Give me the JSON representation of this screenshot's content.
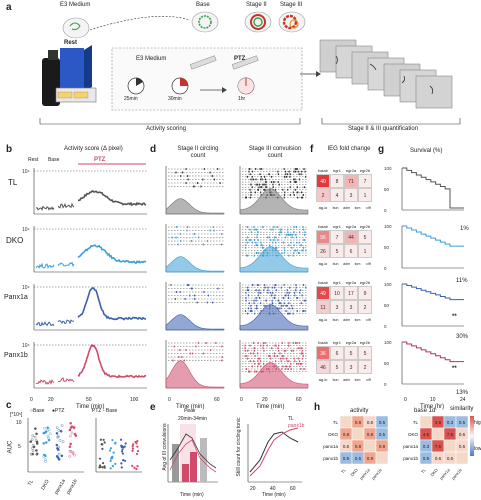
{
  "panel_a": {
    "letter": "a",
    "e3_medium_top": "E3 Medium",
    "rest": "Rest",
    "base": "Base",
    "stage2": "Stage II",
    "stage3": "Stage III",
    "e3_medium_mid": "E3 Medium",
    "ptz": "PTZ",
    "t25": "25min",
    "t30": "30min",
    "t1hr": "1hr",
    "activity_scoring": "Activity scoring",
    "quant": "Stage II & III quantification"
  },
  "panel_b": {
    "letter": "b",
    "title": "Activity score (Δ pixel)",
    "rest": "Rest",
    "base": "Base",
    "ptz": "PTZ",
    "rows": [
      "TL",
      "DKO",
      "Panx1a",
      "Panx1b"
    ],
    "ytick": "10⁴",
    "xticks": [
      "0",
      "20",
      "50",
      "100"
    ],
    "xlabel": "Time (min)",
    "colors": [
      "#555555",
      "#3a9fd6",
      "#3b5fb0",
      "#d04a6a"
    ]
  },
  "panel_c": {
    "letter": "c",
    "scale": "[*10⁵]",
    "legend1": "Base",
    "legend2": "PTZ",
    "legend3": "PTZ - Base",
    "ylabel": "AUC",
    "yticks": [
      "10",
      "5"
    ],
    "groups": [
      "TL",
      "DKO",
      "panx1a",
      "panx1b"
    ]
  },
  "panel_d": {
    "letter": "d",
    "title_left": "Stage II circling count",
    "title_right": "Stage III convulsion count",
    "xlabel": "Time (min)",
    "xticks": [
      "0",
      "20",
      "60"
    ]
  },
  "panel_e": {
    "letter": "e",
    "peak_label": "Peak",
    "window": "20min-34min",
    "ylabel_left": "Avg of III convulsions",
    "ylabel_right": "Stilll count for circling tonic",
    "xticks": [
      "20",
      "40",
      "60"
    ],
    "xlabel": "Time (min)",
    "legend_tl": "TL",
    "legend_panx": "panx1b"
  },
  "panel_f": {
    "letter": "f",
    "title": "IEG fold change",
    "col_headers": [
      "fosab",
      "egr1",
      "egr2a",
      "egr2b"
    ],
    "tables": [
      [
        [
          "40",
          "8",
          "71",
          "7"
        ],
        [
          "2",
          "4",
          "3",
          "1"
        ]
      ],
      [
        [
          "56",
          "7",
          "44",
          "5"
        ],
        [
          "26",
          "5",
          "6",
          "1"
        ]
      ],
      [
        [
          "49",
          "10",
          "17",
          "9"
        ],
        [
          "11",
          "3",
          "3",
          "2"
        ]
      ],
      [
        [
          "36",
          "6",
          "5",
          "5"
        ],
        [
          "46",
          "5",
          "3",
          "2"
        ]
      ]
    ],
    "row_foot": "ag-ic",
    "col_foot": [
      "bun",
      "adm",
      "tom",
      "ciff"
    ]
  },
  "panel_g": {
    "letter": "g",
    "title": "Survival (%)",
    "yticks": [
      "100",
      "50",
      "0"
    ],
    "values": [
      "1%",
      "11%",
      "30%",
      "13%"
    ],
    "stars": "**",
    "xticks": [
      "0",
      "10",
      "24"
    ],
    "xlabel": "Time (hr)",
    "colors": [
      "#555555",
      "#3a9fd6",
      "#3b5fb0",
      "#b0306a"
    ]
  },
  "panel_h": {
    "letter": "h",
    "title_left": "activity",
    "title_mid": "base 1d",
    "title_right": "similarity",
    "rows": [
      "TL",
      "DKO",
      "panx1a",
      "panx1b"
    ],
    "left_vals": [
      [
        "",
        "0.8",
        "0.6",
        "0.5"
      ],
      [
        "0.8",
        "",
        "0.8",
        "0.5"
      ],
      [
        "0.6",
        "0.8",
        "",
        "0.9"
      ],
      [
        "0.5",
        "0.5",
        "0.9",
        ""
      ]
    ],
    "right_vals": [
      [
        "",
        "4.5",
        "0.3",
        "0.5"
      ],
      [
        "4.5",
        "",
        "7.5",
        "0.6"
      ],
      [
        "0.3",
        "7.5",
        "",
        "0.6"
      ],
      [
        "0.5",
        "0.6",
        "0.6",
        ""
      ]
    ],
    "cbar_high": "high",
    "cbar_low": "low"
  }
}
